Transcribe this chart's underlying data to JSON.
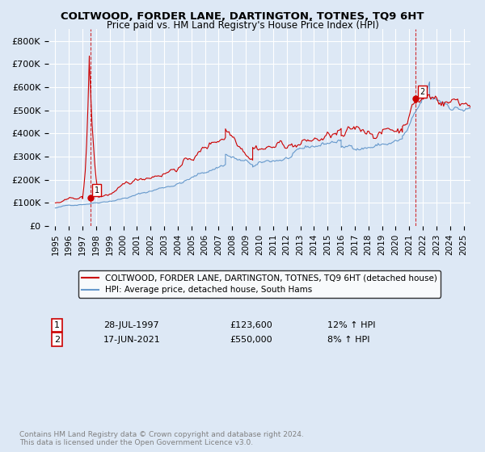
{
  "title": "COLTWOOD, FORDER LANE, DARTINGTON, TOTNES, TQ9 6HT",
  "subtitle": "Price paid vs. HM Land Registry's House Price Index (HPI)",
  "background_color": "#dde8f5",
  "plot_bg_color": "#dde8f5",
  "legend_label_red": "COLTWOOD, FORDER LANE, DARTINGTON, TOTNES, TQ9 6HT (detached house)",
  "legend_label_blue": "HPI: Average price, detached house, South Hams",
  "footnote": "Contains HM Land Registry data © Crown copyright and database right 2024.\nThis data is licensed under the Open Government Licence v3.0.",
  "point1_label": "1",
  "point1_date": "28-JUL-1997",
  "point1_price": "£123,600",
  "point1_hpi": "12% ↑ HPI",
  "point1_x": 1997.57,
  "point1_y": 123600,
  "point2_label": "2",
  "point2_date": "17-JUN-2021",
  "point2_price": "£550,000",
  "point2_hpi": "8% ↑ HPI",
  "point2_x": 2021.46,
  "point2_y": 550000,
  "ylim": [
    0,
    850000
  ],
  "xlim": [
    1994.5,
    2025.5
  ],
  "yticks": [
    0,
    100000,
    200000,
    300000,
    400000,
    500000,
    600000,
    700000,
    800000
  ],
  "ytick_labels": [
    "£0",
    "£100K",
    "£200K",
    "£300K",
    "£400K",
    "£500K",
    "£600K",
    "£700K",
    "£800K"
  ],
  "xticks": [
    1995,
    1996,
    1997,
    1998,
    1999,
    2000,
    2001,
    2002,
    2003,
    2004,
    2005,
    2006,
    2007,
    2008,
    2009,
    2010,
    2011,
    2012,
    2013,
    2014,
    2015,
    2016,
    2017,
    2018,
    2019,
    2020,
    2021,
    2022,
    2023,
    2024,
    2025
  ],
  "red_color": "#cc0000",
  "blue_color": "#6699cc",
  "grid_color": "#ffffff"
}
